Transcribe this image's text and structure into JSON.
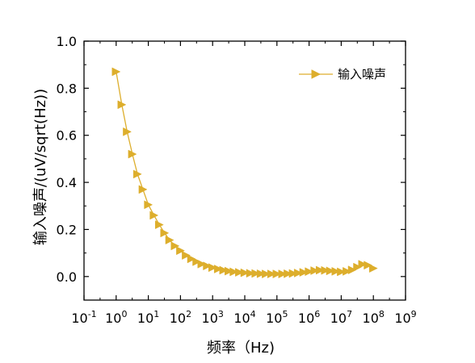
{
  "chart_data": {
    "type": "scatter",
    "xlabel": "频率（Hz)",
    "ylabel": "输入噪声/(uV/sqrt(Hz))",
    "x_scale": "log",
    "xlim_exponent": [
      -1,
      9
    ],
    "ylim": [
      -0.1,
      1.0
    ],
    "x_ticks": [
      {
        "base": "10",
        "exp": "-1"
      },
      {
        "base": "10",
        "exp": "0"
      },
      {
        "base": "10",
        "exp": "1"
      },
      {
        "base": "10",
        "exp": "2"
      },
      {
        "base": "10",
        "exp": "3"
      },
      {
        "base": "10",
        "exp": "4"
      },
      {
        "base": "10",
        "exp": "5"
      },
      {
        "base": "10",
        "exp": "6"
      },
      {
        "base": "10",
        "exp": "7"
      },
      {
        "base": "10",
        "exp": "8"
      },
      {
        "base": "10",
        "exp": "9"
      }
    ],
    "y_ticks": [
      "0.0",
      "0.2",
      "0.4",
      "0.6",
      "0.8",
      "1.0"
    ],
    "legend_position": "top-right",
    "grid": false,
    "series": [
      {
        "name": "输入噪声",
        "color": "#DDAE2C",
        "marker": "triangle-right",
        "x": [
          1,
          1.5,
          2.2,
          3.2,
          4.6,
          6.8,
          10,
          15,
          22,
          32,
          46,
          68,
          100,
          150,
          220,
          320,
          460,
          680,
          1000,
          1500,
          2200,
          3200,
          4600,
          6800,
          10000,
          15000,
          22000,
          32000,
          46000,
          68000,
          100000,
          150000,
          220000,
          320000,
          460000,
          680000,
          1000000,
          1500000,
          2200000,
          3200000,
          4600000,
          6800000,
          10000000,
          15000000,
          22000000,
          32000000,
          46000000,
          68000000,
          100000000
        ],
        "y": [
          0.87,
          0.73,
          0.615,
          0.52,
          0.435,
          0.37,
          0.305,
          0.26,
          0.22,
          0.185,
          0.155,
          0.13,
          0.11,
          0.09,
          0.075,
          0.063,
          0.053,
          0.045,
          0.038,
          0.032,
          0.027,
          0.023,
          0.02,
          0.018,
          0.016,
          0.014,
          0.013,
          0.012,
          0.011,
          0.011,
          0.011,
          0.011,
          0.012,
          0.013,
          0.015,
          0.018,
          0.021,
          0.025,
          0.027,
          0.026,
          0.024,
          0.022,
          0.02,
          0.022,
          0.028,
          0.04,
          0.052,
          0.048,
          0.035
        ]
      }
    ]
  }
}
